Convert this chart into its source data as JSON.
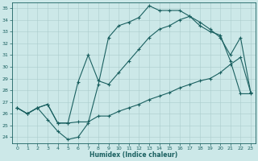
{
  "xlabel": "Humidex (Indice chaleur)",
  "bg_color": "#cce8e8",
  "grid_color": "#aacccc",
  "line_color": "#1a6060",
  "xlim": [
    -0.5,
    23.5
  ],
  "ylim": [
    23.5,
    35.5
  ],
  "xticks": [
    0,
    1,
    2,
    3,
    4,
    5,
    6,
    7,
    8,
    9,
    10,
    11,
    12,
    13,
    14,
    15,
    16,
    17,
    18,
    19,
    20,
    21,
    22,
    23
  ],
  "yticks": [
    24,
    25,
    26,
    27,
    28,
    29,
    30,
    31,
    32,
    33,
    34,
    35
  ],
  "curve1_x": [
    0,
    1,
    2,
    3,
    4,
    5,
    6,
    7,
    8,
    9,
    10,
    11,
    12,
    13,
    14,
    15,
    16,
    17,
    18,
    19,
    20,
    21,
    22,
    23
  ],
  "curve1_y": [
    26.5,
    26.0,
    26.5,
    25.5,
    24.5,
    23.8,
    24.0,
    25.2,
    28.5,
    32.5,
    33.5,
    33.8,
    34.2,
    35.2,
    34.8,
    34.8,
    34.8,
    34.3,
    33.5,
    33.0,
    32.7,
    30.5,
    27.7,
    27.7
  ],
  "curve2_x": [
    0,
    1,
    2,
    3,
    4,
    5,
    6,
    7,
    8,
    9,
    10,
    11,
    12,
    13,
    14,
    15,
    16,
    17,
    18,
    19,
    20,
    21,
    22,
    23
  ],
  "curve2_y": [
    26.5,
    26.0,
    26.5,
    26.8,
    25.2,
    25.2,
    28.7,
    31.0,
    28.8,
    28.5,
    29.5,
    30.5,
    31.5,
    32.5,
    33.2,
    33.5,
    34.0,
    34.3,
    33.8,
    33.2,
    32.5,
    31.0,
    32.5,
    27.8
  ],
  "curve3_x": [
    0,
    1,
    2,
    3,
    4,
    5,
    6,
    7,
    8,
    9,
    10,
    11,
    12,
    13,
    14,
    15,
    16,
    17,
    18,
    19,
    20,
    21,
    22,
    23
  ],
  "curve3_y": [
    26.5,
    26.0,
    26.5,
    26.8,
    25.2,
    25.2,
    25.3,
    25.3,
    25.8,
    25.8,
    26.2,
    26.5,
    26.8,
    27.2,
    27.5,
    27.8,
    28.2,
    28.5,
    28.8,
    29.0,
    29.5,
    30.2,
    30.8,
    27.8
  ]
}
